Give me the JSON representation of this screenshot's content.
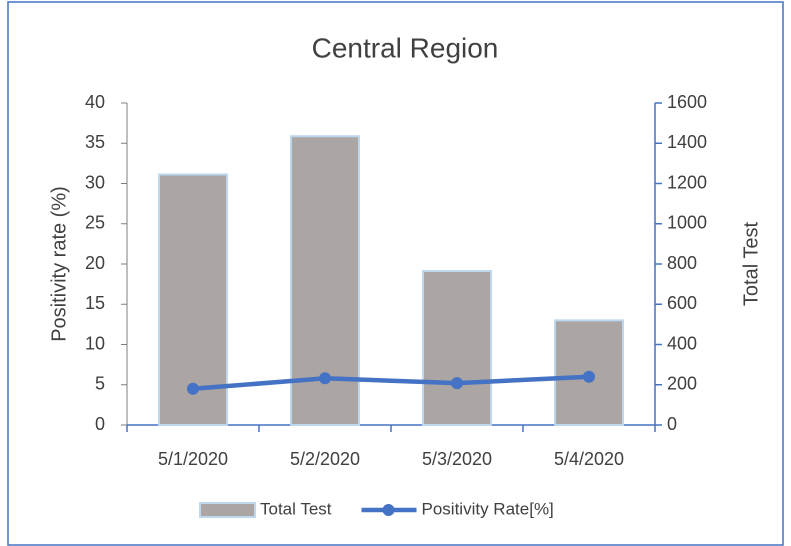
{
  "chart_data": {
    "type": "combo",
    "title": "Central Region",
    "categories": [
      "5/1/2020",
      "5/2/2020",
      "5/3/2020",
      "5/4/2020"
    ],
    "series": [
      {
        "name": "Total Test",
        "type": "bar",
        "axis": "y2",
        "color": "#aba5a4",
        "values": [
          1245,
          1435,
          765,
          520
        ]
      },
      {
        "name": "Positivity Rate[%]",
        "type": "line",
        "axis": "y",
        "color": "#4472c4",
        "values": [
          4.5,
          5.8,
          5.2,
          6.0
        ]
      }
    ],
    "ylabel": "Positivity  rate (%)",
    "y2label": "Total Test",
    "ylim": [
      0,
      40
    ],
    "yticks": [
      0,
      5,
      10,
      15,
      20,
      25,
      30,
      35,
      40
    ],
    "y2lim": [
      0,
      1600
    ],
    "y2ticks": [
      0,
      200,
      400,
      600,
      800,
      1000,
      1200,
      1400,
      1600
    ],
    "legend": "bottom"
  }
}
